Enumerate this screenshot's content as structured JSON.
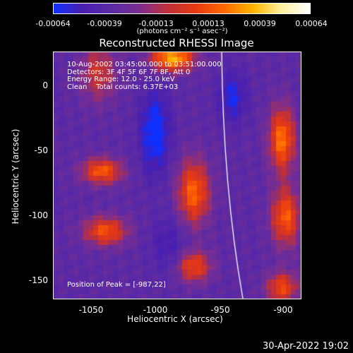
{
  "colorbar": {
    "ticks": [
      "-0.00064",
      "-0.00039",
      "-0.00013",
      "0.00013",
      "0.00039",
      "0.00064"
    ],
    "units": "(photons cm⁻² s⁻¹ asec⁻²)"
  },
  "title": "Reconstructed RHESSI Image",
  "info": {
    "time": "10-Aug-2002 03:45:00.000 to 03:51:00.000",
    "detectors": "Detectors: 3F 4F 5F 6F 7F 8F, Att 0",
    "energy": "Energy Range: 12.0 - 25.0 keV",
    "method": "Clean    Total counts: 6.37E+03"
  },
  "peak": "Position of Peak = [-987,22]",
  "axes": {
    "xlabel": "Heliocentric X (arcsec)",
    "ylabel": "Heliocentric Y (arcsec)",
    "xticks": [
      "-1050",
      "-1000",
      "-950",
      "-900"
    ],
    "yticks": [
      "0",
      "-50",
      "-100",
      "-150"
    ]
  },
  "date": "30-Apr-2022 19:02",
  "colors": {
    "colormap": [
      "#1030ff",
      "#4a1fb0",
      "#5a2aa5",
      "#7b2e90",
      "#c0303a",
      "#e83a12",
      "#ff6a00",
      "#ffb400",
      "#fff0a0",
      "#ffffff"
    ],
    "limb": "#ffffff"
  }
}
